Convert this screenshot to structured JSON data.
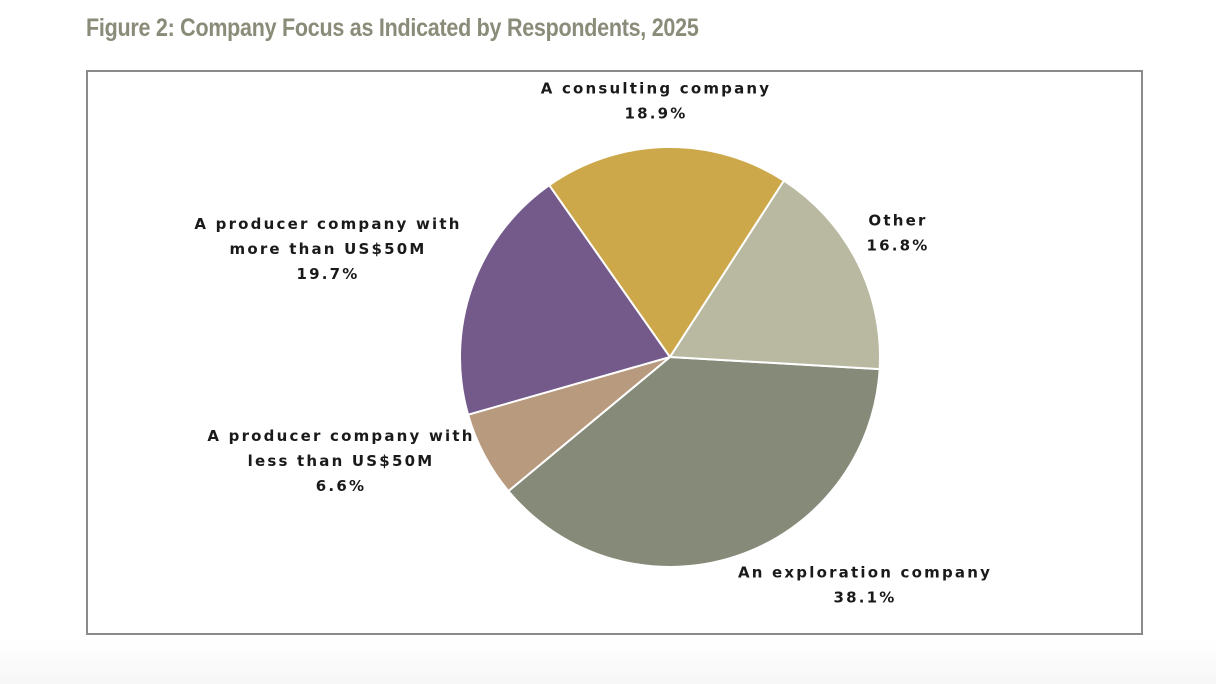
{
  "figure": {
    "title": "Figure 2: Company Focus as Indicated by Respondents, 2025"
  },
  "chart_data": {
    "type": "pie",
    "title": "Figure 2: Company Focus as Indicated by Respondents, 2025",
    "unit": "%",
    "start_angle_deg": 3.3,
    "direction": "clockwise",
    "slices": [
      {
        "label": "An exploration company",
        "label_lines": [
          "An exploration company"
        ],
        "value": 38.1,
        "value_text": "38.1%",
        "color": "#868b79"
      },
      {
        "label": "A producer company with less than US$50M",
        "label_lines": [
          "A producer company with",
          "less than US$50M"
        ],
        "value": 6.6,
        "value_text": "6.6%",
        "color": "#b89a7f"
      },
      {
        "label": "A producer company with more than US$50M",
        "label_lines": [
          "A producer company with",
          "more than US$50M"
        ],
        "value": 19.7,
        "value_text": "19.7%",
        "color": "#74598b"
      },
      {
        "label": "A consulting company",
        "label_lines": [
          "A consulting company"
        ],
        "value": 18.9,
        "value_text": "18.9%",
        "color": "#cca84a"
      },
      {
        "label": "Other",
        "label_lines": [
          "Other"
        ],
        "value": 16.8,
        "value_text": "16.8%",
        "color": "#b8b9a0"
      }
    ],
    "legend": "none (direct labels)"
  }
}
